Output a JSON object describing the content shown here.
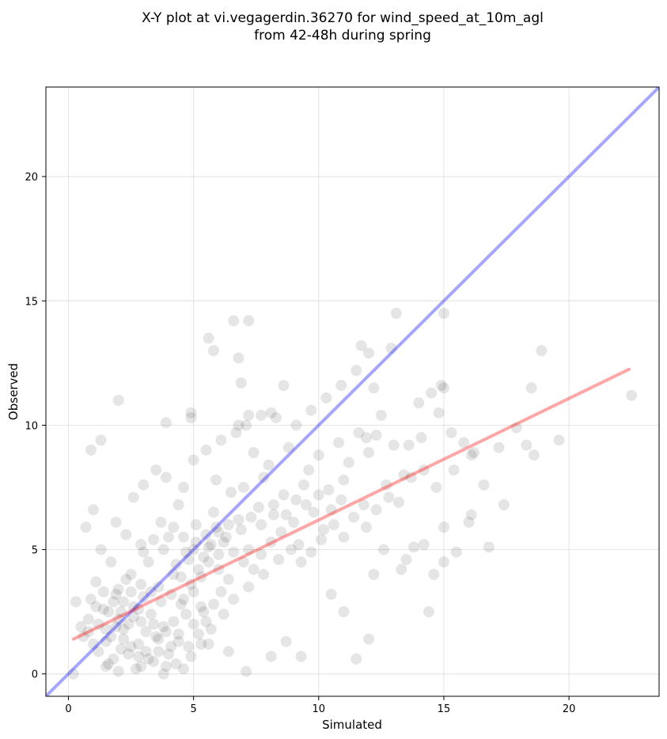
{
  "chart_data": {
    "type": "scatter",
    "title_line1": "X-Y plot at vi.vegagerdin.36270 for wind_speed_at_10m_agl",
    "title_line2": "from 42-48h during spring",
    "xlabel": "Simulated",
    "ylabel": "Observed",
    "xlim": [
      -0.9,
      23.6
    ],
    "ylim": [
      -0.9,
      23.6
    ],
    "xticks": [
      0,
      5,
      10,
      15,
      20
    ],
    "yticks": [
      0,
      5,
      10,
      15,
      20
    ],
    "grid": true,
    "marker_color": "#000000",
    "marker_alpha": 0.1,
    "identity_line": {
      "color": "#0000ff",
      "alpha": 0.35,
      "x": [
        -0.9,
        23.6
      ],
      "y": [
        -0.9,
        23.6
      ]
    },
    "regression_line": {
      "color": "#ff0000",
      "alpha": 0.35,
      "x": [
        0.2,
        22.4
      ],
      "y": [
        1.4,
        12.25
      ]
    },
    "points": [
      [
        2.1,
        1.0
      ],
      [
        2.4,
        0.8
      ],
      [
        2.8,
        1.2
      ],
      [
        3.1,
        0.9
      ],
      [
        3.5,
        1.5
      ],
      [
        2.0,
        2.2
      ],
      [
        2.6,
        2.7
      ],
      [
        3.0,
        3.1
      ],
      [
        1.5,
        1.3
      ],
      [
        1.8,
        0.6
      ],
      [
        2.2,
        1.8
      ],
      [
        3.3,
        2.4
      ],
      [
        3.8,
        1.9
      ],
      [
        4.1,
        1.1
      ],
      [
        4.5,
        2.8
      ],
      [
        3.6,
        3.5
      ],
      [
        4.2,
        4.0
      ],
      [
        4.8,
        4.6
      ],
      [
        5.2,
        4.2
      ],
      [
        5.6,
        5.1
      ],
      [
        6.0,
        4.8
      ],
      [
        5.0,
        3.3
      ],
      [
        5.4,
        2.5
      ],
      [
        4.0,
        5.5
      ],
      [
        3.2,
        4.5
      ],
      [
        2.5,
        4.0
      ],
      [
        2.9,
        5.2
      ],
      [
        3.7,
        6.1
      ],
      [
        4.4,
        6.8
      ],
      [
        5.1,
        6.0
      ],
      [
        5.8,
        6.5
      ],
      [
        6.3,
        5.5
      ],
      [
        6.8,
        6.2
      ],
      [
        7.2,
        5.0
      ],
      [
        7.6,
        6.7
      ],
      [
        6.5,
        7.3
      ],
      [
        5.9,
        7.8
      ],
      [
        7.0,
        7.5
      ],
      [
        7.8,
        7.9
      ],
      [
        8.2,
        6.4
      ],
      [
        8.6,
        7.2
      ],
      [
        9.0,
        6.1
      ],
      [
        9.4,
        7.6
      ],
      [
        8.0,
        8.4
      ],
      [
        7.4,
        8.9
      ],
      [
        8.8,
        9.1
      ],
      [
        9.6,
        8.2
      ],
      [
        10.0,
        8.8
      ],
      [
        10.4,
        7.4
      ],
      [
        9.8,
        6.5
      ],
      [
        10.8,
        9.3
      ],
      [
        11.2,
        8.5
      ],
      [
        11.6,
        9.7
      ],
      [
        12.0,
        8.9
      ],
      [
        12.5,
        10.4
      ],
      [
        13.0,
        9.2
      ],
      [
        13.4,
        8.0
      ],
      [
        12.8,
        7.1
      ],
      [
        11.8,
        6.8
      ],
      [
        11.0,
        7.8
      ],
      [
        10.2,
        5.8
      ],
      [
        9.2,
        5.2
      ],
      [
        8.4,
        4.6
      ],
      [
        7.8,
        4.0
      ],
      [
        7.2,
        3.5
      ],
      [
        6.6,
        3.0
      ],
      [
        6.2,
        2.4
      ],
      [
        5.7,
        1.8
      ],
      [
        5.3,
        1.2
      ],
      [
        4.9,
        0.7
      ],
      [
        4.3,
        0.4
      ],
      [
        3.9,
        0.3
      ],
      [
        3.4,
        0.5
      ],
      [
        2.7,
        0.2
      ],
      [
        1.6,
        0.4
      ],
      [
        1.2,
        0.9
      ],
      [
        0.8,
        1.7
      ],
      [
        0.5,
        1.9
      ],
      [
        0.3,
        2.9
      ],
      [
        0.9,
        3.0
      ],
      [
        1.4,
        2.6
      ],
      [
        1.1,
        3.7
      ],
      [
        1.7,
        4.5
      ],
      [
        1.3,
        5.0
      ],
      [
        0.7,
        5.9
      ],
      [
        1.0,
        6.6
      ],
      [
        1.9,
        6.1
      ],
      [
        2.3,
        5.6
      ],
      [
        2.6,
        7.1
      ],
      [
        3.0,
        7.6
      ],
      [
        3.5,
        8.2
      ],
      [
        3.9,
        7.9
      ],
      [
        4.6,
        7.5
      ],
      [
        5.0,
        8.6
      ],
      [
        5.5,
        9.0
      ],
      [
        6.1,
        9.4
      ],
      [
        6.7,
        9.7
      ],
      [
        7.1,
        10.0
      ],
      [
        7.7,
        10.4
      ],
      [
        8.3,
        10.3
      ],
      [
        9.1,
        10.0
      ],
      [
        9.7,
        10.6
      ],
      [
        10.3,
        11.1
      ],
      [
        10.9,
        11.6
      ],
      [
        11.5,
        12.2
      ],
      [
        12.2,
        11.5
      ],
      [
        12.9,
        13.1
      ],
      [
        13.1,
        14.5
      ],
      [
        11.7,
        13.2
      ],
      [
        12.0,
        12.9
      ],
      [
        14.0,
        10.9
      ],
      [
        14.5,
        11.3
      ],
      [
        14.9,
        11.6
      ],
      [
        15.3,
        9.7
      ],
      [
        15.8,
        9.3
      ],
      [
        16.2,
        8.9
      ],
      [
        16.6,
        7.6
      ],
      [
        17.2,
        9.1
      ],
      [
        17.9,
        9.9
      ],
      [
        18.3,
        9.2
      ],
      [
        18.6,
        8.8
      ],
      [
        19.6,
        9.4
      ],
      [
        18.5,
        11.5
      ],
      [
        18.9,
        13.0
      ],
      [
        16.8,
        5.1
      ],
      [
        17.4,
        6.8
      ],
      [
        15.5,
        4.9
      ],
      [
        15.0,
        4.5
      ],
      [
        14.4,
        2.5
      ],
      [
        14.6,
        4.0
      ],
      [
        13.8,
        5.1
      ],
      [
        13.3,
        4.2
      ],
      [
        12.6,
        5.0
      ],
      [
        12.2,
        4.0
      ],
      [
        11.5,
        0.6
      ],
      [
        12.0,
        1.4
      ],
      [
        11.0,
        2.5
      ],
      [
        10.5,
        3.2
      ],
      [
        9.3,
        0.7
      ],
      [
        8.7,
        1.3
      ],
      [
        8.1,
        0.7
      ],
      [
        7.1,
        0.1
      ],
      [
        6.4,
        0.9
      ],
      [
        5.6,
        1.2
      ],
      [
        4.6,
        0.2
      ],
      [
        3.8,
        0.0
      ],
      [
        2.9,
        0.3
      ],
      [
        2.0,
        0.1
      ],
      [
        1.5,
        0.3
      ],
      [
        0.2,
        0.0
      ],
      [
        22.5,
        11.2
      ],
      [
        5.6,
        13.5
      ],
      [
        5.8,
        13.0
      ],
      [
        6.6,
        14.2
      ],
      [
        7.2,
        14.2
      ],
      [
        6.8,
        12.7
      ],
      [
        6.9,
        11.7
      ],
      [
        8.6,
        11.6
      ],
      [
        15.0,
        14.5
      ],
      [
        2.0,
        11.0
      ],
      [
        4.9,
        10.5
      ],
      [
        1.3,
        9.4
      ],
      [
        0.9,
        9.0
      ],
      [
        3.9,
        10.1
      ],
      [
        4.9,
        10.3
      ],
      [
        6.8,
        10.0
      ],
      [
        7.2,
        10.4
      ],
      [
        8.1,
        10.5
      ],
      [
        11.9,
        9.5
      ],
      [
        12.3,
        9.6
      ],
      [
        13.6,
        9.2
      ],
      [
        14.1,
        9.5
      ],
      [
        14.8,
        10.5
      ],
      [
        15.0,
        11.5
      ],
      [
        16.1,
        8.8
      ],
      [
        16.0,
        6.1
      ],
      [
        16.1,
        6.4
      ],
      [
        15.0,
        5.9
      ],
      [
        14.2,
        5.2
      ],
      [
        13.5,
        4.6
      ],
      [
        2.4,
        2.0
      ],
      [
        2.6,
        2.3
      ],
      [
        2.8,
        2.6
      ],
      [
        2.2,
        2.9
      ],
      [
        2.5,
        3.3
      ],
      [
        2.9,
        2.1
      ],
      [
        3.1,
        1.7
      ],
      [
        3.4,
        2.0
      ],
      [
        3.6,
        1.4
      ],
      [
        3.9,
        1.7
      ],
      [
        4.2,
        2.1
      ],
      [
        4.4,
        1.6
      ],
      [
        4.7,
        2.4
      ],
      [
        5.0,
        2.0
      ],
      [
        5.3,
        2.7
      ],
      [
        4.6,
        3.0
      ],
      [
        4.1,
        3.2
      ],
      [
        3.7,
        2.9
      ],
      [
        3.3,
        3.3
      ],
      [
        2.9,
        3.6
      ],
      [
        2.3,
        3.8
      ],
      [
        2.0,
        3.4
      ],
      [
        1.8,
        2.9
      ],
      [
        1.6,
        2.5
      ],
      [
        1.9,
        1.9
      ],
      [
        2.2,
        1.4
      ],
      [
        2.5,
        1.1
      ],
      [
        2.8,
        0.7
      ],
      [
        3.2,
        0.6
      ],
      [
        3.6,
        0.9
      ],
      [
        4.0,
        0.8
      ],
      [
        4.4,
        1.3
      ],
      [
        4.8,
        1.1
      ],
      [
        5.2,
        1.6
      ],
      [
        5.5,
        2.1
      ],
      [
        5.8,
        2.8
      ],
      [
        6.1,
        3.3
      ],
      [
        6.4,
        3.8
      ],
      [
        6.0,
        4.2
      ],
      [
        5.6,
        4.5
      ],
      [
        5.3,
        3.9
      ],
      [
        4.9,
        3.6
      ],
      [
        4.5,
        3.9
      ],
      [
        4.3,
        4.4
      ],
      [
        4.7,
        4.9
      ],
      [
        5.1,
        5.3
      ],
      [
        5.5,
        5.6
      ],
      [
        5.9,
        5.9
      ],
      [
        6.2,
        5.3
      ],
      [
        6.6,
        4.9
      ],
      [
        7.0,
        4.5
      ],
      [
        7.4,
        4.2
      ],
      [
        7.7,
        4.8
      ],
      [
        8.1,
        5.3
      ],
      [
        8.5,
        5.7
      ],
      [
        8.9,
        5.0
      ],
      [
        9.3,
        4.5
      ],
      [
        9.7,
        4.9
      ],
      [
        10.1,
        5.4
      ],
      [
        10.6,
        6.0
      ],
      [
        11.0,
        5.5
      ],
      [
        11.4,
        6.3
      ],
      [
        11.9,
        5.9
      ],
      [
        12.3,
        6.6
      ],
      [
        12.7,
        7.6
      ],
      [
        13.2,
        6.9
      ],
      [
        13.7,
        7.9
      ],
      [
        14.2,
        8.2
      ],
      [
        14.7,
        7.5
      ],
      [
        15.4,
        8.2
      ],
      [
        3.0,
        4.9
      ],
      [
        3.4,
        5.4
      ],
      [
        3.8,
        5.0
      ],
      [
        4.2,
        5.9
      ],
      [
        4.6,
        5.5
      ],
      [
        5.0,
        5.0
      ],
      [
        5.4,
        4.7
      ],
      [
        5.7,
        5.2
      ],
      [
        6.0,
        5.7
      ],
      [
        6.4,
        6.0
      ],
      [
        6.9,
        5.8
      ],
      [
        7.3,
        6.3
      ],
      [
        7.7,
        6.0
      ],
      [
        8.2,
        6.8
      ],
      [
        8.7,
        6.4
      ],
      [
        9.1,
        7.0
      ],
      [
        9.5,
        6.8
      ],
      [
        10.0,
        7.2
      ],
      [
        10.5,
        6.6
      ],
      [
        10.9,
        7.0
      ],
      [
        1.0,
        1.2
      ],
      [
        0.6,
        1.5
      ],
      [
        1.2,
        2.0
      ],
      [
        1.5,
        1.8
      ],
      [
        1.7,
        1.5
      ],
      [
        2.1,
        2.5
      ],
      [
        1.9,
        3.2
      ],
      [
        1.4,
        3.3
      ],
      [
        1.1,
        2.7
      ],
      [
        0.8,
        2.2
      ]
    ]
  }
}
